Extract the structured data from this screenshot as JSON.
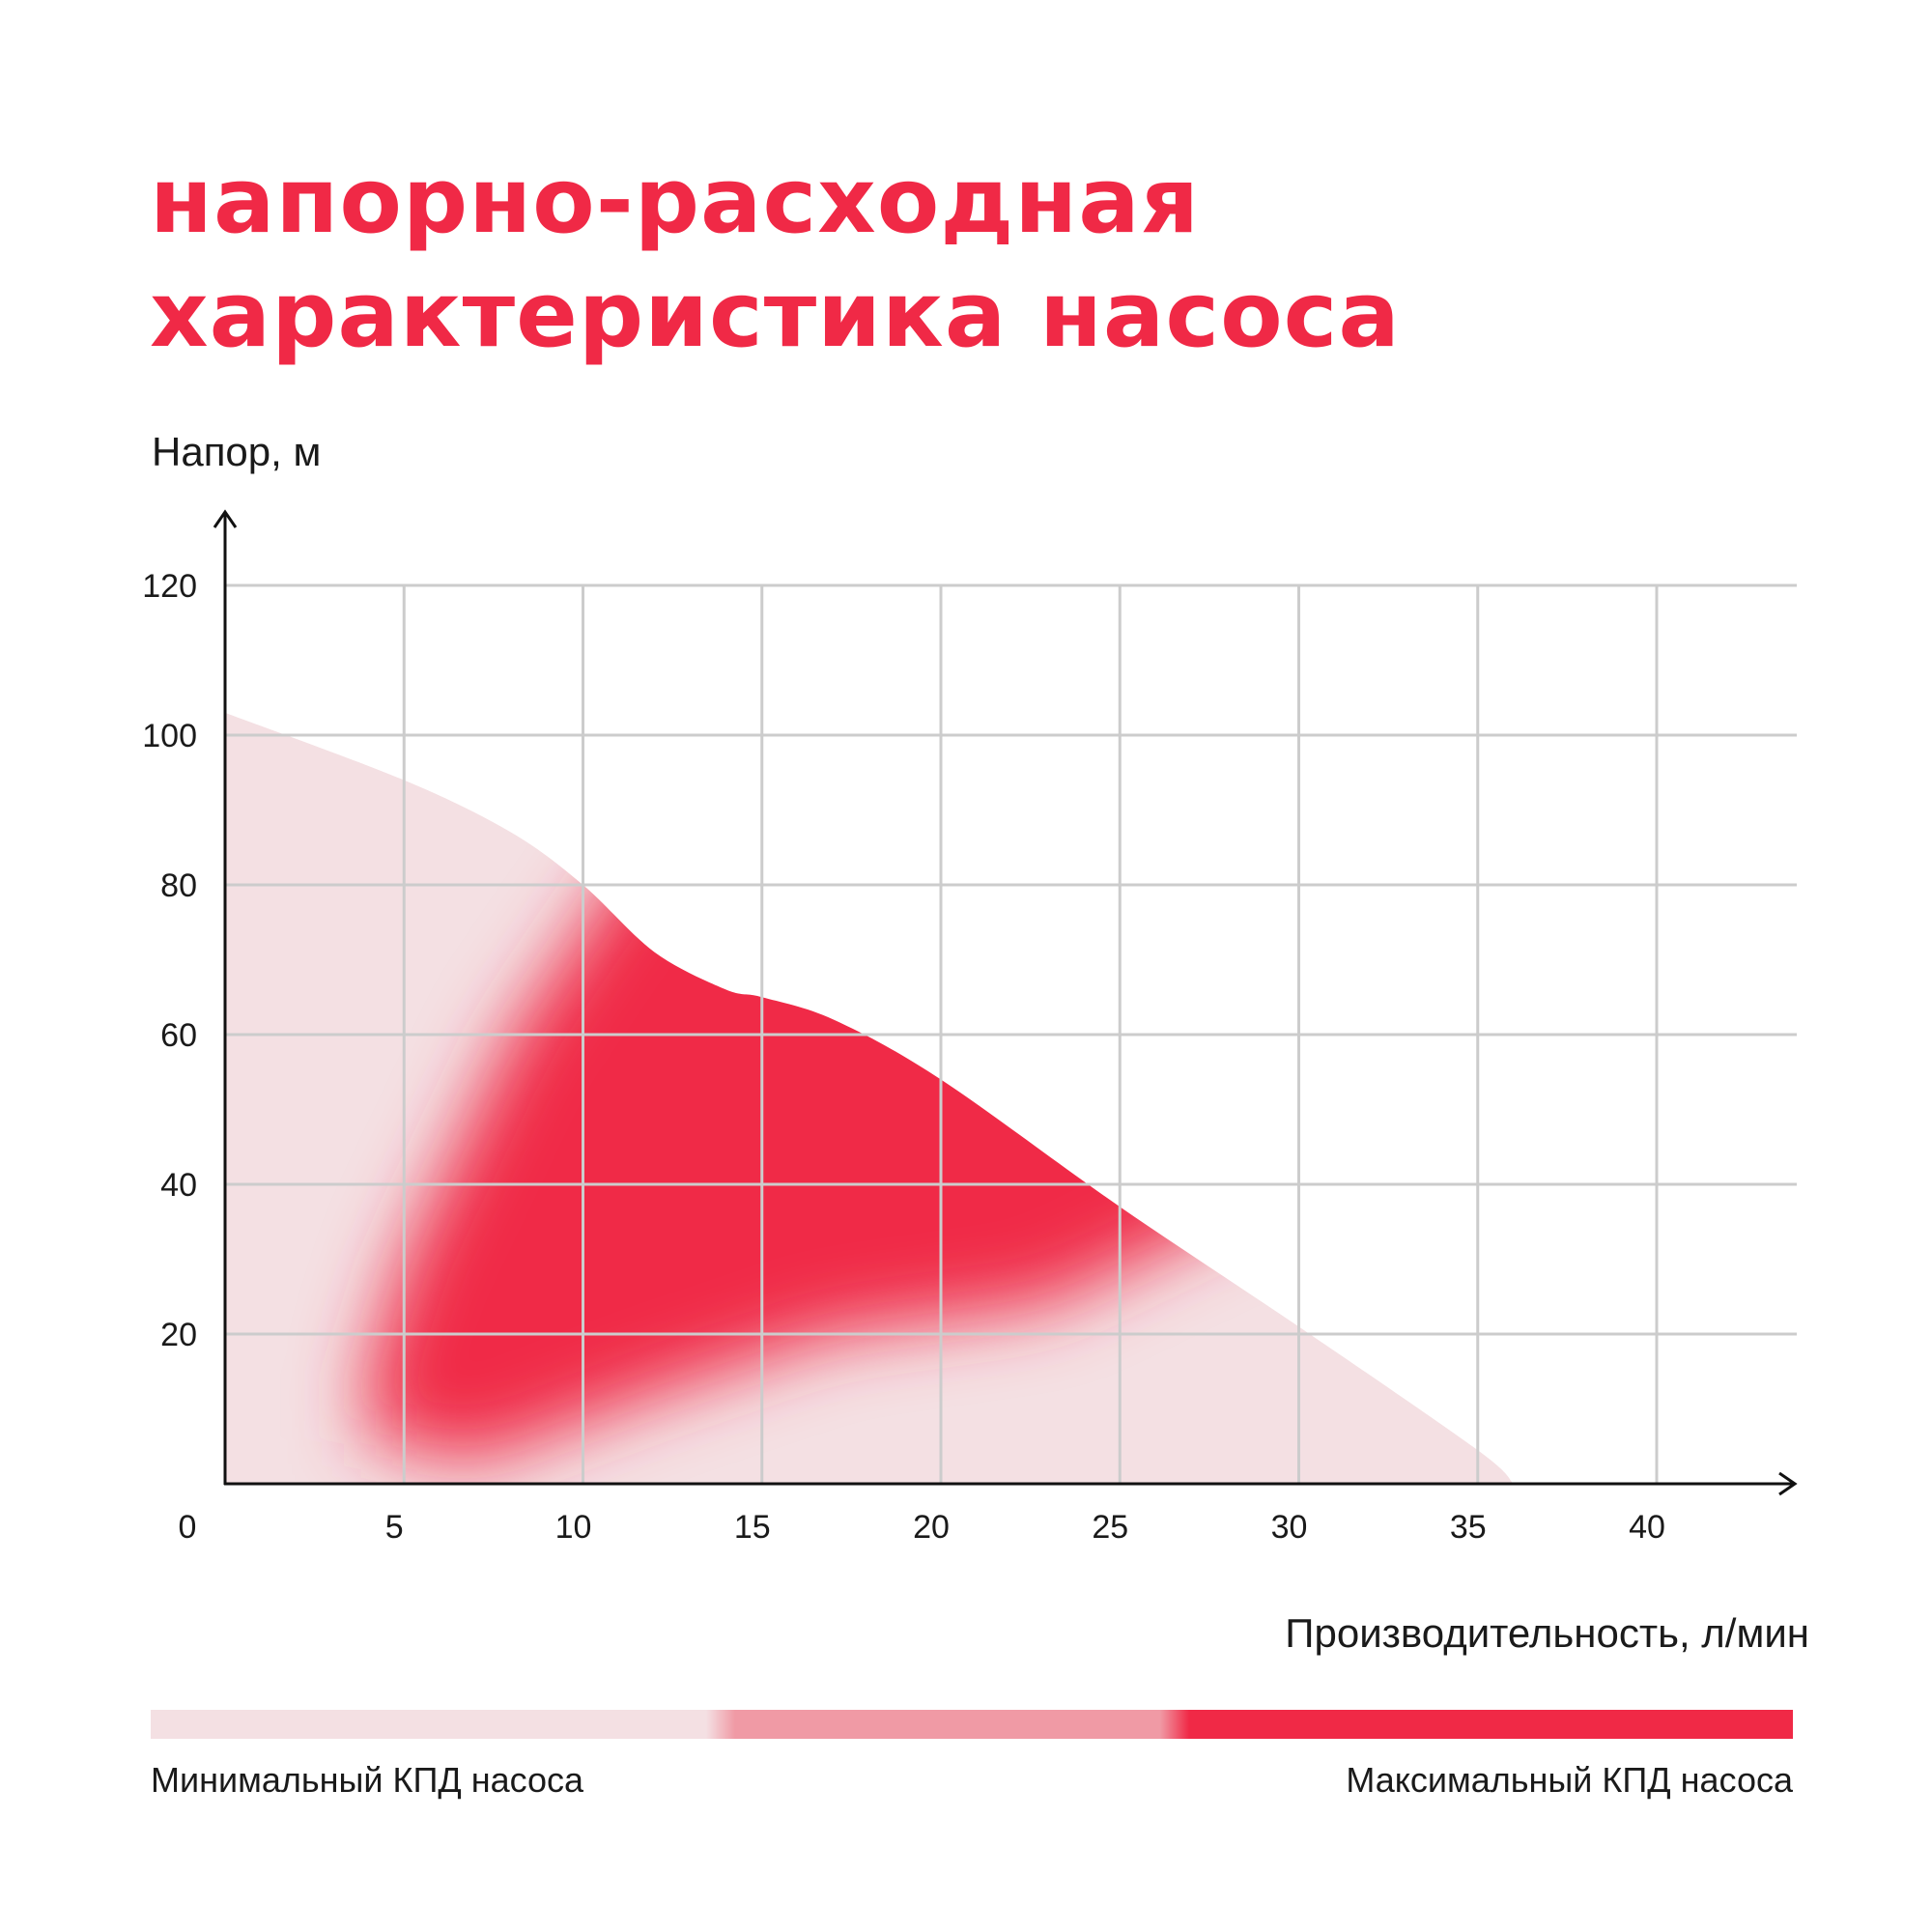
{
  "title_lines": [
    "напорно-расходная",
    "характеристика насоса"
  ],
  "colors": {
    "accent": "#f02946",
    "pale": "#f4e0e3",
    "grid": "#cccccc",
    "axis": "#111111"
  },
  "chart_data": {
    "type": "area",
    "title": "напорно-расходная характеристика насоса",
    "xlabel": "Производительность, л/мин",
    "ylabel": "Напор, м",
    "xlim": [
      0,
      44
    ],
    "ylim": [
      0,
      120
    ],
    "x_ticks": [
      0,
      5,
      10,
      15,
      20,
      25,
      30,
      35,
      40
    ],
    "y_ticks": [
      20,
      40,
      60,
      80,
      100,
      120
    ],
    "grid": true,
    "series": [
      {
        "x": [
          0,
          5,
          8,
          10,
          12,
          14,
          15,
          17,
          20,
          25,
          30,
          35,
          36
        ],
        "values": [
          103,
          94,
          87,
          80,
          71,
          66,
          65,
          62,
          54,
          37,
          21,
          4.5,
          0
        ]
      }
    ],
    "efficiency_scale": {
      "min_label": "Минимальный КПД насоса",
      "max_label": "Максимальный КПД насоса"
    }
  }
}
